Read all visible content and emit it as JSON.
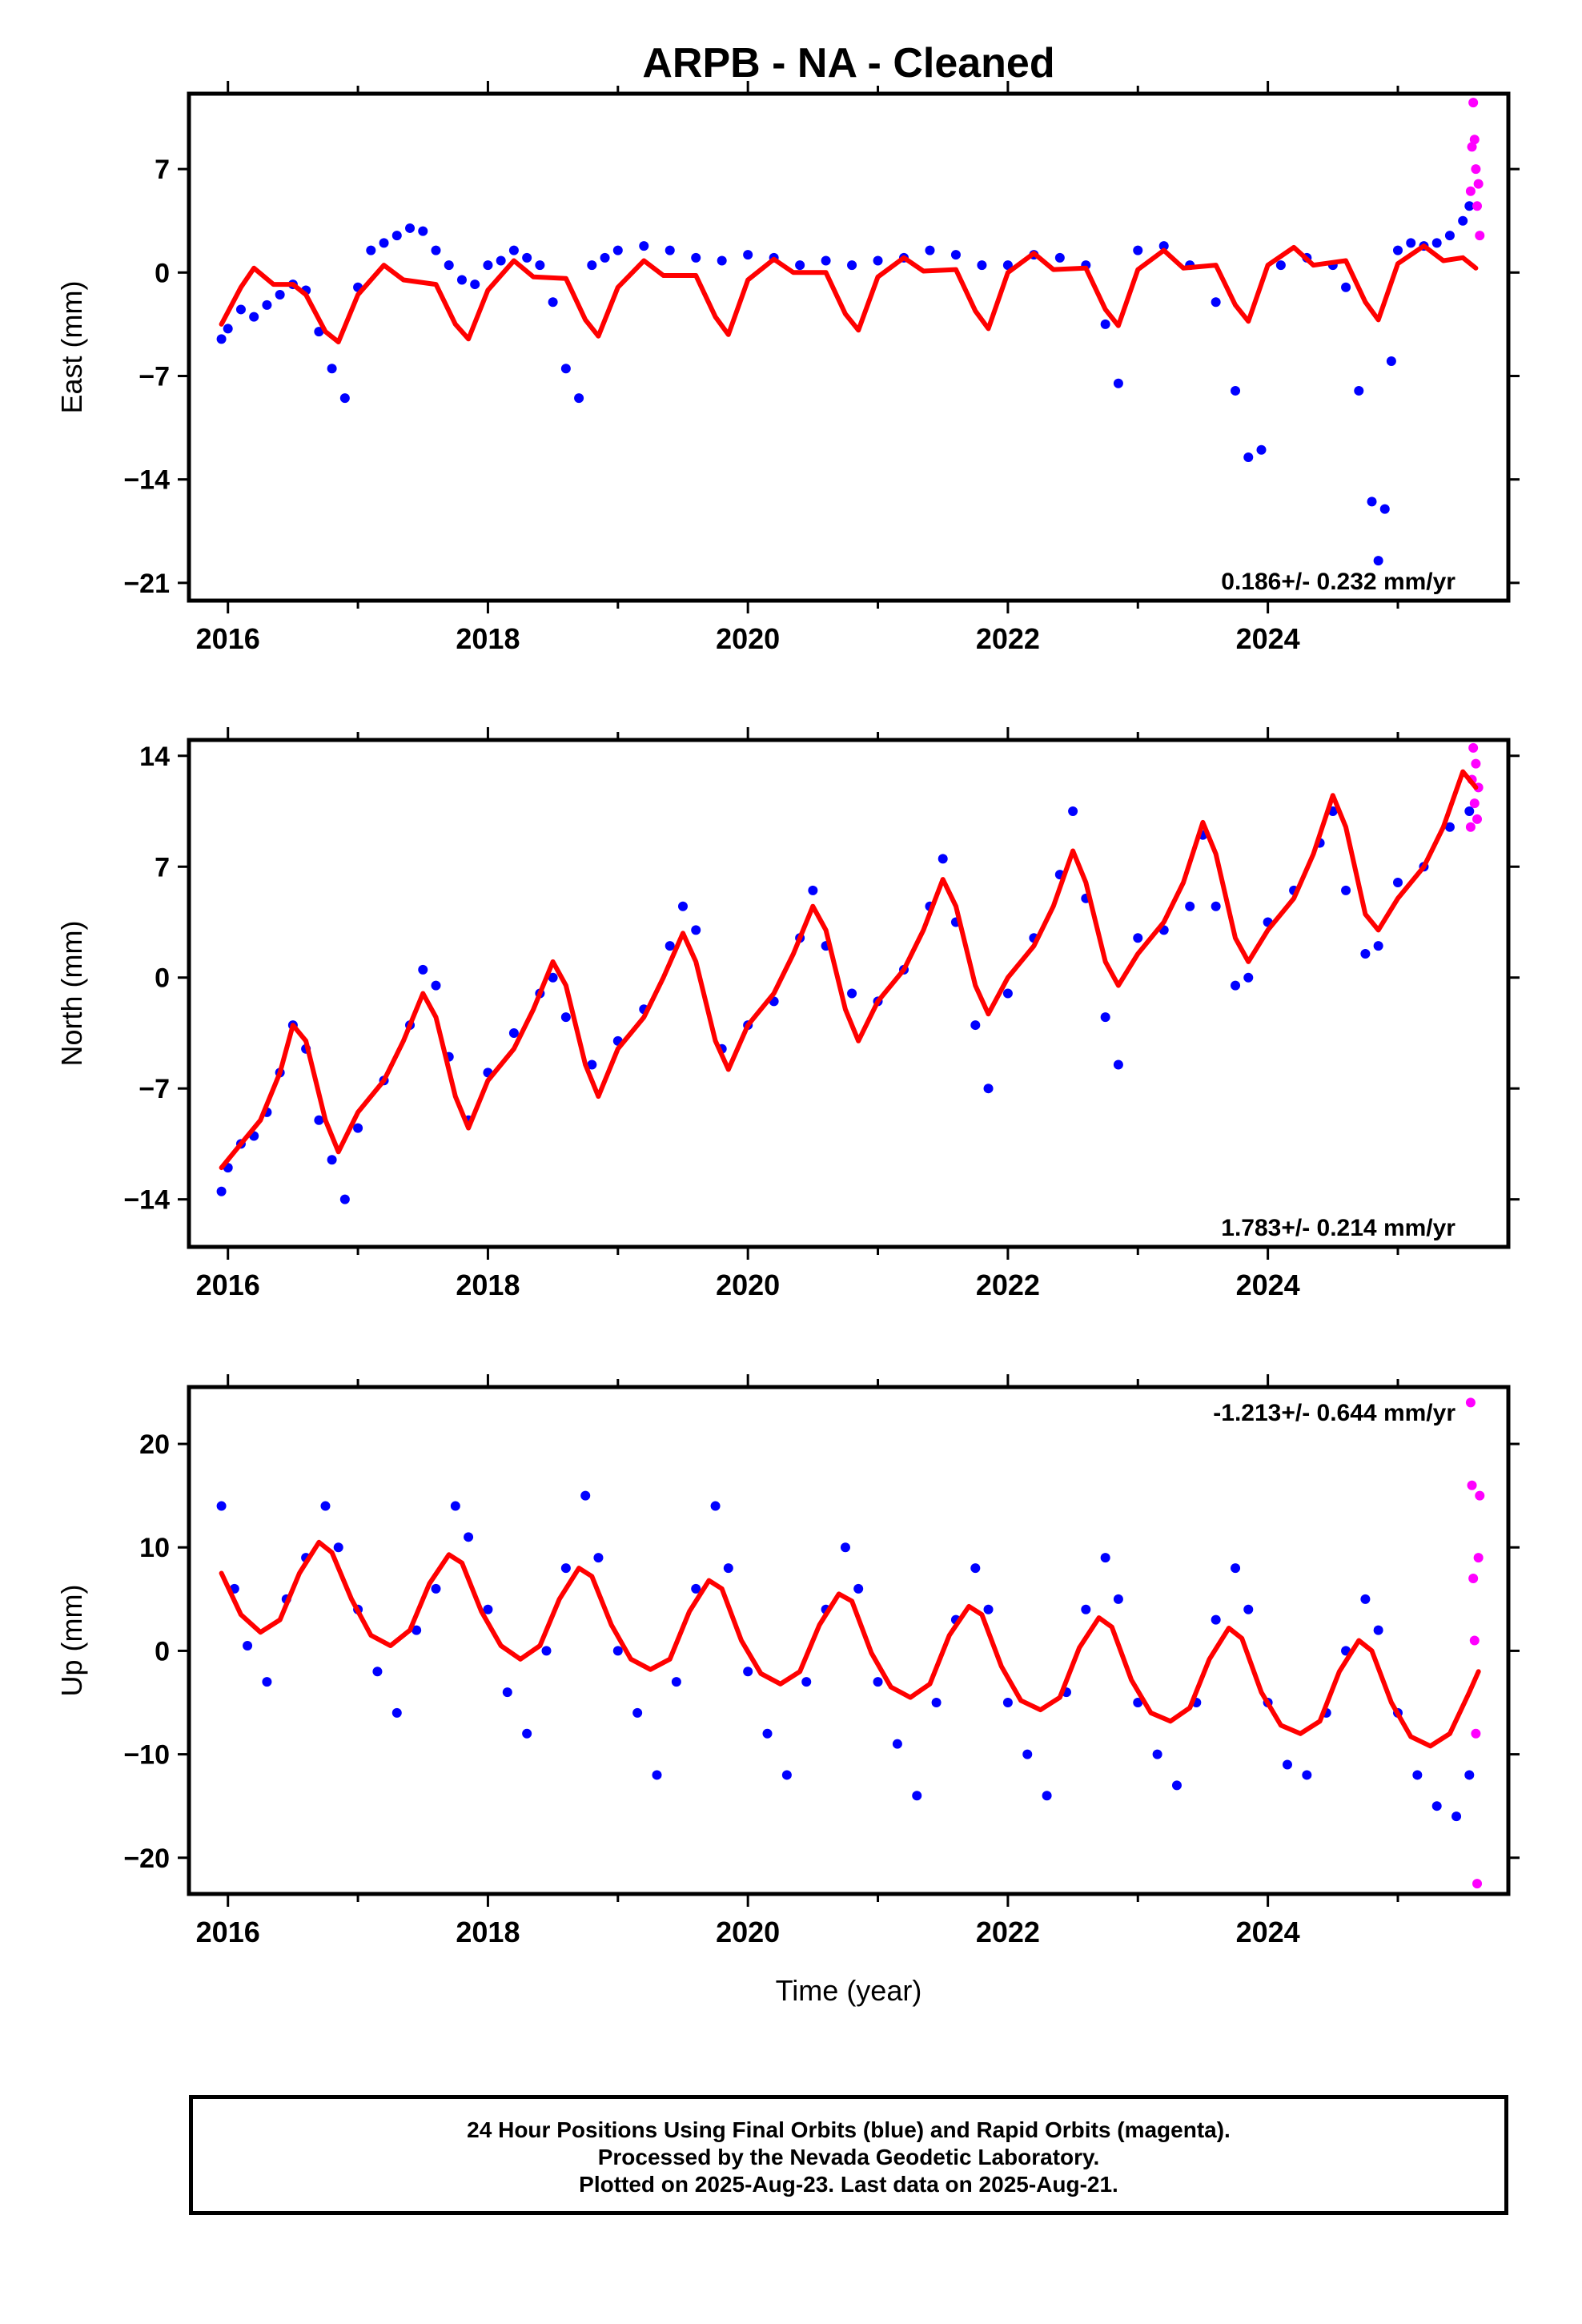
{
  "title": "ARPB  - NA - Cleaned",
  "xlabel": "Time (year)",
  "footer": {
    "line1": "24 Hour Positions Using Final Orbits (blue) and Rapid Orbits (magenta).",
    "line2": "Processed by the Nevada Geodetic Laboratory.",
    "line3": "Plotted on 2025-Aug-23. Last data on 2025-Aug-21."
  },
  "colors": {
    "final": "#0000ff",
    "rapid": "#ff00ff",
    "model": "#ff0000",
    "frame": "#000000"
  },
  "chart_data": [
    {
      "type": "scatter",
      "ylabel": "East (mm)",
      "rate_label": "0.186+/- 0.232 mm/yr",
      "xlim": [
        2015.7,
        2025.85
      ],
      "ylim": [
        -22.2,
        12.1
      ],
      "yticks": [
        -21,
        -14,
        -7,
        0,
        7
      ],
      "xticks": [
        2016,
        2018,
        2020,
        2022,
        2024
      ],
      "grid": false,
      "series": [
        {
          "name": "Final Orbits (blue)",
          "x": [
            2015.95,
            2016.0,
            2016.1,
            2016.2,
            2016.3,
            2016.4,
            2016.5,
            2016.6,
            2016.7,
            2016.8,
            2016.9,
            2017.0,
            2017.1,
            2017.2,
            2017.3,
            2017.4,
            2017.5,
            2017.6,
            2017.7,
            2017.8,
            2017.9,
            2018.0,
            2018.1,
            2018.2,
            2018.3,
            2018.4,
            2018.5,
            2018.6,
            2018.7,
            2018.8,
            2018.9,
            2019.0,
            2019.2,
            2019.4,
            2019.6,
            2019.8,
            2020.0,
            2020.2,
            2020.4,
            2020.6,
            2020.8,
            2021.0,
            2021.2,
            2021.4,
            2021.6,
            2021.8,
            2022.0,
            2022.2,
            2022.4,
            2022.6,
            2022.75,
            2022.85,
            2023.0,
            2023.2,
            2023.4,
            2023.6,
            2023.75,
            2023.85,
            2023.95,
            2024.1,
            2024.3,
            2024.5,
            2024.6,
            2024.7,
            2024.8,
            2024.85,
            2024.9,
            2024.95,
            2025.0,
            2025.1,
            2025.2,
            2025.3,
            2025.4,
            2025.5,
            2025.55
          ],
          "y": [
            -4.5,
            -3.8,
            -2.5,
            -3.0,
            -2.2,
            -1.5,
            -0.8,
            -1.2,
            -4.0,
            -6.5,
            -8.5,
            -1.0,
            1.5,
            2.0,
            2.5,
            3.0,
            2.8,
            1.5,
            0.5,
            -0.5,
            -0.8,
            0.5,
            0.8,
            1.5,
            1.0,
            0.5,
            -2.0,
            -6.5,
            -8.5,
            0.5,
            1.0,
            1.5,
            1.8,
            1.5,
            1.0,
            0.8,
            1.2,
            1.0,
            0.5,
            0.8,
            0.5,
            0.8,
            1.0,
            1.5,
            1.2,
            0.5,
            0.5,
            1.2,
            1.0,
            0.5,
            -3.5,
            -7.5,
            1.5,
            1.8,
            0.5,
            -2.0,
            -8.0,
            -12.5,
            -12.0,
            0.5,
            1.0,
            0.5,
            -1.0,
            -8.0,
            -15.5,
            -19.5,
            -16.0,
            -6.0,
            1.5,
            2.0,
            1.8,
            2.0,
            2.5,
            3.5,
            4.5
          ]
        },
        {
          "name": "Rapid Orbits (magenta)",
          "x": [
            2025.56,
            2025.57,
            2025.58,
            2025.59,
            2025.6,
            2025.61,
            2025.62,
            2025.63
          ],
          "y": [
            5.5,
            8.5,
            11.5,
            9.0,
            7.0,
            4.5,
            6.0,
            2.5
          ]
        },
        {
          "name": "Model",
          "x": [
            2015.95,
            2016.1,
            2016.2,
            2016.35,
            2016.5,
            2016.6,
            2016.75,
            2016.85,
            2017.0,
            2017.2,
            2017.35,
            2017.6,
            2017.75,
            2017.85,
            2018.0,
            2018.2,
            2018.35,
            2018.6,
            2018.75,
            2018.85,
            2019.0,
            2019.2,
            2019.35,
            2019.6,
            2019.75,
            2019.85,
            2020.0,
            2020.2,
            2020.35,
            2020.6,
            2020.75,
            2020.85,
            2021.0,
            2021.2,
            2021.35,
            2021.6,
            2021.75,
            2021.85,
            2022.0,
            2022.2,
            2022.35,
            2022.6,
            2022.75,
            2022.85,
            2023.0,
            2023.2,
            2023.35,
            2023.6,
            2023.75,
            2023.85,
            2024.0,
            2024.2,
            2024.35,
            2024.6,
            2024.75,
            2024.85,
            2025.0,
            2025.2,
            2025.35,
            2025.5,
            2025.6
          ],
          "y": [
            -3.5,
            -1.0,
            0.3,
            -0.8,
            -0.8,
            -1.5,
            -4.0,
            -4.7,
            -1.5,
            0.5,
            -0.5,
            -0.8,
            -3.5,
            -4.5,
            -1.2,
            0.8,
            -0.3,
            -0.4,
            -3.2,
            -4.3,
            -1.0,
            0.8,
            -0.2,
            -0.2,
            -3.0,
            -4.2,
            -0.5,
            0.9,
            0.0,
            0.0,
            -2.8,
            -3.9,
            -0.3,
            1.0,
            0.1,
            0.2,
            -2.6,
            -3.8,
            0.0,
            1.3,
            0.2,
            0.3,
            -2.5,
            -3.6,
            0.2,
            1.5,
            0.3,
            0.5,
            -2.2,
            -3.3,
            0.5,
            1.7,
            0.5,
            0.8,
            -2.0,
            -3.2,
            0.6,
            1.8,
            0.8,
            1.0,
            0.3
          ]
        }
      ]
    },
    {
      "type": "scatter",
      "ylabel": "North (mm)",
      "rate_label": "1.783+/- 0.214 mm/yr",
      "xlim": [
        2015.7,
        2025.85
      ],
      "ylim": [
        -17.0,
        15.0
      ],
      "yticks": [
        -14,
        -7,
        0,
        7,
        14
      ],
      "xticks": [
        2016,
        2018,
        2020,
        2022,
        2024
      ],
      "grid": false,
      "series": [
        {
          "name": "Final Orbits (blue)",
          "x": [
            2015.95,
            2016.0,
            2016.1,
            2016.2,
            2016.3,
            2016.4,
            2016.5,
            2016.6,
            2016.7,
            2016.8,
            2016.9,
            2017.0,
            2017.2,
            2017.4,
            2017.5,
            2017.6,
            2017.7,
            2017.85,
            2018.0,
            2018.2,
            2018.4,
            2018.5,
            2018.6,
            2018.8,
            2019.0,
            2019.2,
            2019.4,
            2019.5,
            2019.6,
            2019.8,
            2020.0,
            2020.2,
            2020.4,
            2020.5,
            2020.6,
            2020.8,
            2021.0,
            2021.2,
            2021.4,
            2021.5,
            2021.6,
            2021.75,
            2021.85,
            2022.0,
            2022.2,
            2022.4,
            2022.5,
            2022.6,
            2022.75,
            2022.85,
            2023.0,
            2023.2,
            2023.4,
            2023.5,
            2023.6,
            2023.75,
            2023.85,
            2024.0,
            2024.2,
            2024.4,
            2024.5,
            2024.6,
            2024.75,
            2024.85,
            2025.0,
            2025.2,
            2025.4,
            2025.55
          ],
          "y": [
            -13.5,
            -12.0,
            -10.5,
            -10.0,
            -8.5,
            -6.0,
            -3.0,
            -4.5,
            -9.0,
            -11.5,
            -14.0,
            -9.5,
            -6.5,
            -3.0,
            0.5,
            -0.5,
            -5.0,
            -9.0,
            -6.0,
            -3.5,
            -1.0,
            0.0,
            -2.5,
            -5.5,
            -4.0,
            -2.0,
            2.0,
            4.5,
            3.0,
            -4.5,
            -3.0,
            -1.5,
            2.5,
            5.5,
            2.0,
            -1.0,
            -1.5,
            0.5,
            4.5,
            7.5,
            3.5,
            -3.0,
            -7.0,
            -1.0,
            2.5,
            6.5,
            10.5,
            5.0,
            -2.5,
            -5.5,
            2.5,
            3.0,
            4.5,
            9.0,
            4.5,
            -0.5,
            0.0,
            3.5,
            5.5,
            8.5,
            10.5,
            5.5,
            1.5,
            2.0,
            6.0,
            7.0,
            9.5,
            10.5
          ]
        },
        {
          "name": "Rapid Orbits (magenta)",
          "x": [
            2025.56,
            2025.57,
            2025.58,
            2025.59,
            2025.6,
            2025.61,
            2025.62
          ],
          "y": [
            9.5,
            12.5,
            14.5,
            11.0,
            13.5,
            10.0,
            12.0
          ]
        },
        {
          "name": "Model",
          "x": [
            2015.95,
            2016.1,
            2016.25,
            2016.4,
            2016.5,
            2016.6,
            2016.75,
            2016.85,
            2017.0,
            2017.2,
            2017.35,
            2017.5,
            2017.6,
            2017.75,
            2017.85,
            2018.0,
            2018.2,
            2018.35,
            2018.5,
            2018.6,
            2018.75,
            2018.85,
            2019.0,
            2019.2,
            2019.35,
            2019.5,
            2019.6,
            2019.75,
            2019.85,
            2020.0,
            2020.2,
            2020.35,
            2020.5,
            2020.6,
            2020.75,
            2020.85,
            2021.0,
            2021.2,
            2021.35,
            2021.5,
            2021.6,
            2021.75,
            2021.85,
            2022.0,
            2022.2,
            2022.35,
            2022.5,
            2022.6,
            2022.75,
            2022.85,
            2023.0,
            2023.2,
            2023.35,
            2023.5,
            2023.6,
            2023.75,
            2023.85,
            2024.0,
            2024.2,
            2024.35,
            2024.5,
            2024.6,
            2024.75,
            2024.85,
            2025.0,
            2025.2,
            2025.35,
            2025.5,
            2025.6
          ],
          "y": [
            -12.0,
            -10.5,
            -9.0,
            -6.0,
            -3.0,
            -4.0,
            -9.0,
            -11.0,
            -8.5,
            -6.5,
            -4.0,
            -1.0,
            -2.5,
            -7.5,
            -9.5,
            -6.5,
            -4.5,
            -2.0,
            1.0,
            -0.5,
            -5.5,
            -7.5,
            -4.5,
            -2.5,
            0.0,
            2.8,
            1.0,
            -4.0,
            -5.8,
            -3.0,
            -1.0,
            1.5,
            4.5,
            3.0,
            -2.0,
            -4.0,
            -1.5,
            0.5,
            3.0,
            6.2,
            4.5,
            -0.5,
            -2.3,
            0.0,
            2.0,
            4.5,
            8.0,
            6.0,
            1.0,
            -0.5,
            1.5,
            3.5,
            6.0,
            9.8,
            7.8,
            2.5,
            1.0,
            3.0,
            5.0,
            7.8,
            11.5,
            9.5,
            4.0,
            3.0,
            5.0,
            7.0,
            9.5,
            13.0,
            12.0
          ]
        }
      ]
    },
    {
      "type": "scatter",
      "ylabel": "Up (mm)",
      "rate_label": "-1.213+/- 0.644 mm/yr",
      "xlim": [
        2015.7,
        2025.85
      ],
      "ylim": [
        -23.5,
        25.5
      ],
      "yticks": [
        -20,
        -10,
        0,
        10,
        20
      ],
      "xticks": [
        2016,
        2018,
        2020,
        2022,
        2024
      ],
      "grid": false,
      "series": [
        {
          "name": "Final Orbits (blue)",
          "x": [
            2015.95,
            2016.05,
            2016.15,
            2016.3,
            2016.45,
            2016.6,
            2016.75,
            2016.85,
            2017.0,
            2017.15,
            2017.3,
            2017.45,
            2017.6,
            2017.75,
            2017.85,
            2018.0,
            2018.15,
            2018.3,
            2018.45,
            2018.6,
            2018.75,
            2018.85,
            2019.0,
            2019.15,
            2019.3,
            2019.45,
            2019.6,
            2019.75,
            2019.85,
            2020.0,
            2020.15,
            2020.3,
            2020.45,
            2020.6,
            2020.75,
            2020.85,
            2021.0,
            2021.15,
            2021.3,
            2021.45,
            2021.6,
            2021.75,
            2021.85,
            2022.0,
            2022.15,
            2022.3,
            2022.45,
            2022.6,
            2022.75,
            2022.85,
            2023.0,
            2023.15,
            2023.3,
            2023.45,
            2023.6,
            2023.75,
            2023.85,
            2024.0,
            2024.15,
            2024.3,
            2024.45,
            2024.6,
            2024.75,
            2024.85,
            2025.0,
            2025.15,
            2025.3,
            2025.45,
            2025.55
          ],
          "y": [
            14.0,
            6.0,
            0.5,
            -3.0,
            5.0,
            9.0,
            14.0,
            10.0,
            4.0,
            -2.0,
            -6.0,
            2.0,
            6.0,
            14.0,
            11.0,
            4.0,
            -4.0,
            -8.0,
            0.0,
            8.0,
            15.0,
            9.0,
            0.0,
            -6.0,
            -12.0,
            -3.0,
            6.0,
            14.0,
            8.0,
            -2.0,
            -8.0,
            -12.0,
            -3.0,
            4.0,
            10.0,
            6.0,
            -3.0,
            -9.0,
            -14.0,
            -5.0,
            3.0,
            8.0,
            4.0,
            -5.0,
            -10.0,
            -14.0,
            -4.0,
            4.0,
            9.0,
            5.0,
            -5.0,
            -10.0,
            -13.0,
            -5.0,
            3.0,
            8.0,
            4.0,
            -5.0,
            -11.0,
            -12.0,
            -6.0,
            0.0,
            5.0,
            2.0,
            -6.0,
            -12.0,
            -15.0,
            -16.0,
            -12.0
          ]
        },
        {
          "name": "Rapid Orbits (magenta)",
          "x": [
            2025.56,
            2025.57,
            2025.58,
            2025.59,
            2025.6,
            2025.61,
            2025.62,
            2025.63
          ],
          "y": [
            24.0,
            16.0,
            7.0,
            1.0,
            -8.0,
            -22.5,
            9.0,
            15.0
          ]
        },
        {
          "name": "Model",
          "x": [
            2015.95,
            2016.1,
            2016.25,
            2016.4,
            2016.55,
            2016.7,
            2016.8,
            2016.95,
            2017.1,
            2017.25,
            2017.4,
            2017.55,
            2017.7,
            2017.8,
            2017.95,
            2018.1,
            2018.25,
            2018.4,
            2018.55,
            2018.7,
            2018.8,
            2018.95,
            2019.1,
            2019.25,
            2019.4,
            2019.55,
            2019.7,
            2019.8,
            2019.95,
            2020.1,
            2020.25,
            2020.4,
            2020.55,
            2020.7,
            2020.8,
            2020.95,
            2021.1,
            2021.25,
            2021.4,
            2021.55,
            2021.7,
            2021.8,
            2021.95,
            2022.1,
            2022.25,
            2022.4,
            2022.55,
            2022.7,
            2022.8,
            2022.95,
            2023.1,
            2023.25,
            2023.4,
            2023.55,
            2023.7,
            2023.8,
            2023.95,
            2024.1,
            2024.25,
            2024.4,
            2024.55,
            2024.7,
            2024.8,
            2024.95,
            2025.1,
            2025.25,
            2025.4,
            2025.55,
            2025.62
          ],
          "y": [
            7.5,
            3.5,
            1.8,
            3.0,
            7.5,
            10.5,
            9.5,
            5.0,
            1.5,
            0.5,
            2.0,
            6.5,
            9.3,
            8.5,
            3.8,
            0.5,
            -0.8,
            0.5,
            5.0,
            8.0,
            7.2,
            2.5,
            -0.8,
            -1.8,
            -0.8,
            3.8,
            6.8,
            6.0,
            1.0,
            -2.2,
            -3.2,
            -2.0,
            2.5,
            5.5,
            4.8,
            -0.2,
            -3.5,
            -4.5,
            -3.2,
            1.5,
            4.3,
            3.5,
            -1.5,
            -4.8,
            -5.7,
            -4.5,
            0.3,
            3.2,
            2.3,
            -2.8,
            -6.0,
            -6.8,
            -5.5,
            -0.8,
            2.2,
            1.2,
            -4.0,
            -7.2,
            -8.0,
            -6.8,
            -2.0,
            1.0,
            0.0,
            -5.0,
            -8.3,
            -9.2,
            -8.0,
            -4.0,
            -2.0
          ]
        }
      ]
    }
  ]
}
